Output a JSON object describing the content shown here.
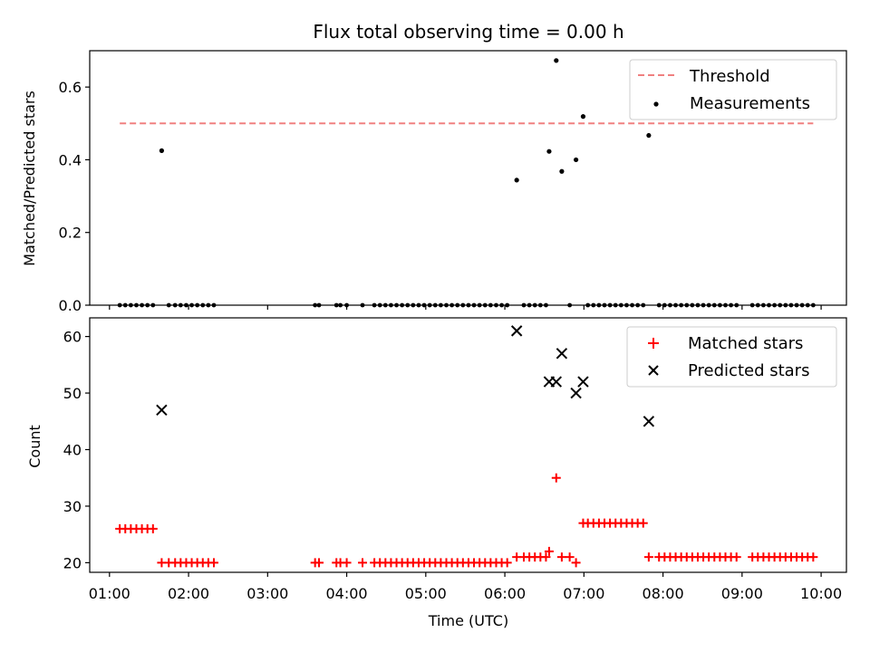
{
  "chart_data": {
    "title": "Flux total observing time = 0.00 h",
    "xlabel": "Time (UTC)",
    "x_unit": "hours UTC",
    "xlim": [
      0.75,
      10.32
    ],
    "xticks": [
      {
        "v": 1,
        "label": "01:00"
      },
      {
        "v": 2,
        "label": "02:00"
      },
      {
        "v": 3,
        "label": "03:00"
      },
      {
        "v": 4,
        "label": "04:00"
      },
      {
        "v": 5,
        "label": "05:00"
      },
      {
        "v": 6,
        "label": "06:00"
      },
      {
        "v": 7,
        "label": "07:00"
      },
      {
        "v": 8,
        "label": "08:00"
      },
      {
        "v": 9,
        "label": "09:00"
      },
      {
        "v": 10,
        "label": "10:00"
      }
    ],
    "top": {
      "type": "scatter",
      "ylabel": "Matched/Predicted stars",
      "ylim": [
        0,
        0.7
      ],
      "yticks": [
        {
          "v": 0,
          "label": "0.0"
        },
        {
          "v": 0.2,
          "label": "0.2"
        },
        {
          "v": 0.4,
          "label": "0.4"
        },
        {
          "v": 0.6,
          "label": "0.6"
        }
      ],
      "threshold": {
        "name": "Threshold",
        "value": 0.5,
        "x_range": [
          1.13,
          9.9
        ],
        "color": "#f08080"
      },
      "measurements": {
        "name": "Measurements",
        "color": "#000000",
        "zero_x": [
          1.13,
          1.2,
          1.27,
          1.34,
          1.41,
          1.48,
          1.55,
          1.75,
          1.83,
          1.9,
          1.97,
          2.04,
          2.11,
          2.18,
          2.25,
          2.32,
          3.6,
          3.65,
          3.87,
          3.92,
          4.0,
          4.2,
          4.35,
          4.42,
          4.49,
          4.56,
          4.63,
          4.7,
          4.77,
          4.84,
          4.91,
          4.98,
          5.05,
          5.12,
          5.19,
          5.26,
          5.33,
          5.4,
          5.47,
          5.54,
          5.61,
          5.68,
          5.75,
          5.82,
          5.89,
          5.96,
          6.03,
          6.24,
          6.31,
          6.38,
          6.45,
          6.52,
          6.82,
          7.05,
          7.12,
          7.19,
          7.26,
          7.33,
          7.4,
          7.47,
          7.54,
          7.61,
          7.68,
          7.75,
          7.95,
          8.02,
          8.09,
          8.16,
          8.23,
          8.3,
          8.37,
          8.44,
          8.51,
          8.58,
          8.65,
          8.72,
          8.79,
          8.86,
          8.93,
          9.13,
          9.2,
          9.27,
          9.34,
          9.41,
          9.48,
          9.55,
          9.62,
          9.69,
          9.76,
          9.83,
          9.9
        ],
        "points": [
          {
            "x": 1.66,
            "y": 0.425
          },
          {
            "x": 6.15,
            "y": 0.344
          },
          {
            "x": 6.56,
            "y": 0.423
          },
          {
            "x": 6.65,
            "y": 0.673
          },
          {
            "x": 6.72,
            "y": 0.368
          },
          {
            "x": 6.9,
            "y": 0.4
          },
          {
            "x": 6.99,
            "y": 0.519
          },
          {
            "x": 7.82,
            "y": 0.467
          }
        ]
      },
      "legend": [
        "Threshold",
        "Measurements"
      ],
      "legend_position": "top-right"
    },
    "bottom": {
      "type": "scatter",
      "ylabel": "Count",
      "ylim": [
        18.3,
        63.3
      ],
      "yticks": [
        {
          "v": 20,
          "label": "20"
        },
        {
          "v": 30,
          "label": "30"
        },
        {
          "v": 40,
          "label": "40"
        },
        {
          "v": 50,
          "label": "50"
        },
        {
          "v": 60,
          "label": "60"
        }
      ],
      "matched": {
        "name": "Matched stars",
        "color": "#ff0000",
        "points": [
          {
            "x": 1.13,
            "y": 26
          },
          {
            "x": 1.2,
            "y": 26
          },
          {
            "x": 1.27,
            "y": 26
          },
          {
            "x": 1.34,
            "y": 26
          },
          {
            "x": 1.41,
            "y": 26
          },
          {
            "x": 1.48,
            "y": 26
          },
          {
            "x": 1.55,
            "y": 26
          },
          {
            "x": 1.66,
            "y": 20
          },
          {
            "x": 1.75,
            "y": 20
          },
          {
            "x": 1.83,
            "y": 20
          },
          {
            "x": 1.9,
            "y": 20
          },
          {
            "x": 1.97,
            "y": 20
          },
          {
            "x": 2.04,
            "y": 20
          },
          {
            "x": 2.11,
            "y": 20
          },
          {
            "x": 2.18,
            "y": 20
          },
          {
            "x": 2.25,
            "y": 20
          },
          {
            "x": 2.32,
            "y": 20
          },
          {
            "x": 3.6,
            "y": 20
          },
          {
            "x": 3.65,
            "y": 20
          },
          {
            "x": 3.87,
            "y": 20
          },
          {
            "x": 3.92,
            "y": 20
          },
          {
            "x": 4.0,
            "y": 20
          },
          {
            "x": 4.2,
            "y": 20
          },
          {
            "x": 4.35,
            "y": 20
          },
          {
            "x": 4.42,
            "y": 20
          },
          {
            "x": 4.49,
            "y": 20
          },
          {
            "x": 4.56,
            "y": 20
          },
          {
            "x": 4.63,
            "y": 20
          },
          {
            "x": 4.7,
            "y": 20
          },
          {
            "x": 4.77,
            "y": 20
          },
          {
            "x": 4.84,
            "y": 20
          },
          {
            "x": 4.91,
            "y": 20
          },
          {
            "x": 4.98,
            "y": 20
          },
          {
            "x": 5.05,
            "y": 20
          },
          {
            "x": 5.12,
            "y": 20
          },
          {
            "x": 5.19,
            "y": 20
          },
          {
            "x": 5.26,
            "y": 20
          },
          {
            "x": 5.33,
            "y": 20
          },
          {
            "x": 5.4,
            "y": 20
          },
          {
            "x": 5.47,
            "y": 20
          },
          {
            "x": 5.54,
            "y": 20
          },
          {
            "x": 5.61,
            "y": 20
          },
          {
            "x": 5.68,
            "y": 20
          },
          {
            "x": 5.75,
            "y": 20
          },
          {
            "x": 5.82,
            "y": 20
          },
          {
            "x": 5.89,
            "y": 20
          },
          {
            "x": 5.96,
            "y": 20
          },
          {
            "x": 6.03,
            "y": 20
          },
          {
            "x": 6.15,
            "y": 21
          },
          {
            "x": 6.24,
            "y": 21
          },
          {
            "x": 6.31,
            "y": 21
          },
          {
            "x": 6.38,
            "y": 21
          },
          {
            "x": 6.45,
            "y": 21
          },
          {
            "x": 6.52,
            "y": 21
          },
          {
            "x": 6.56,
            "y": 22
          },
          {
            "x": 6.65,
            "y": 35
          },
          {
            "x": 6.72,
            "y": 21
          },
          {
            "x": 6.82,
            "y": 21
          },
          {
            "x": 6.9,
            "y": 20
          },
          {
            "x": 6.99,
            "y": 27
          },
          {
            "x": 7.05,
            "y": 27
          },
          {
            "x": 7.12,
            "y": 27
          },
          {
            "x": 7.19,
            "y": 27
          },
          {
            "x": 7.26,
            "y": 27
          },
          {
            "x": 7.33,
            "y": 27
          },
          {
            "x": 7.4,
            "y": 27
          },
          {
            "x": 7.47,
            "y": 27
          },
          {
            "x": 7.54,
            "y": 27
          },
          {
            "x": 7.61,
            "y": 27
          },
          {
            "x": 7.68,
            "y": 27
          },
          {
            "x": 7.75,
            "y": 27
          },
          {
            "x": 7.82,
            "y": 21
          },
          {
            "x": 7.95,
            "y": 21
          },
          {
            "x": 8.02,
            "y": 21
          },
          {
            "x": 8.09,
            "y": 21
          },
          {
            "x": 8.16,
            "y": 21
          },
          {
            "x": 8.23,
            "y": 21
          },
          {
            "x": 8.3,
            "y": 21
          },
          {
            "x": 8.37,
            "y": 21
          },
          {
            "x": 8.44,
            "y": 21
          },
          {
            "x": 8.51,
            "y": 21
          },
          {
            "x": 8.58,
            "y": 21
          },
          {
            "x": 8.65,
            "y": 21
          },
          {
            "x": 8.72,
            "y": 21
          },
          {
            "x": 8.79,
            "y": 21
          },
          {
            "x": 8.86,
            "y": 21
          },
          {
            "x": 8.93,
            "y": 21
          },
          {
            "x": 9.13,
            "y": 21
          },
          {
            "x": 9.2,
            "y": 21
          },
          {
            "x": 9.27,
            "y": 21
          },
          {
            "x": 9.34,
            "y": 21
          },
          {
            "x": 9.41,
            "y": 21
          },
          {
            "x": 9.48,
            "y": 21
          },
          {
            "x": 9.55,
            "y": 21
          },
          {
            "x": 9.62,
            "y": 21
          },
          {
            "x": 9.69,
            "y": 21
          },
          {
            "x": 9.76,
            "y": 21
          },
          {
            "x": 9.83,
            "y": 21
          },
          {
            "x": 9.9,
            "y": 21
          }
        ]
      },
      "predicted": {
        "name": "Predicted stars",
        "color": "#000000",
        "points": [
          {
            "x": 1.66,
            "y": 47
          },
          {
            "x": 6.15,
            "y": 61
          },
          {
            "x": 6.56,
            "y": 52
          },
          {
            "x": 6.65,
            "y": 52
          },
          {
            "x": 6.72,
            "y": 57
          },
          {
            "x": 6.9,
            "y": 50
          },
          {
            "x": 6.99,
            "y": 52
          },
          {
            "x": 7.82,
            "y": 45
          }
        ]
      },
      "legend": [
        "Matched stars",
        "Predicted stars"
      ],
      "legend_position": "top-right"
    }
  }
}
